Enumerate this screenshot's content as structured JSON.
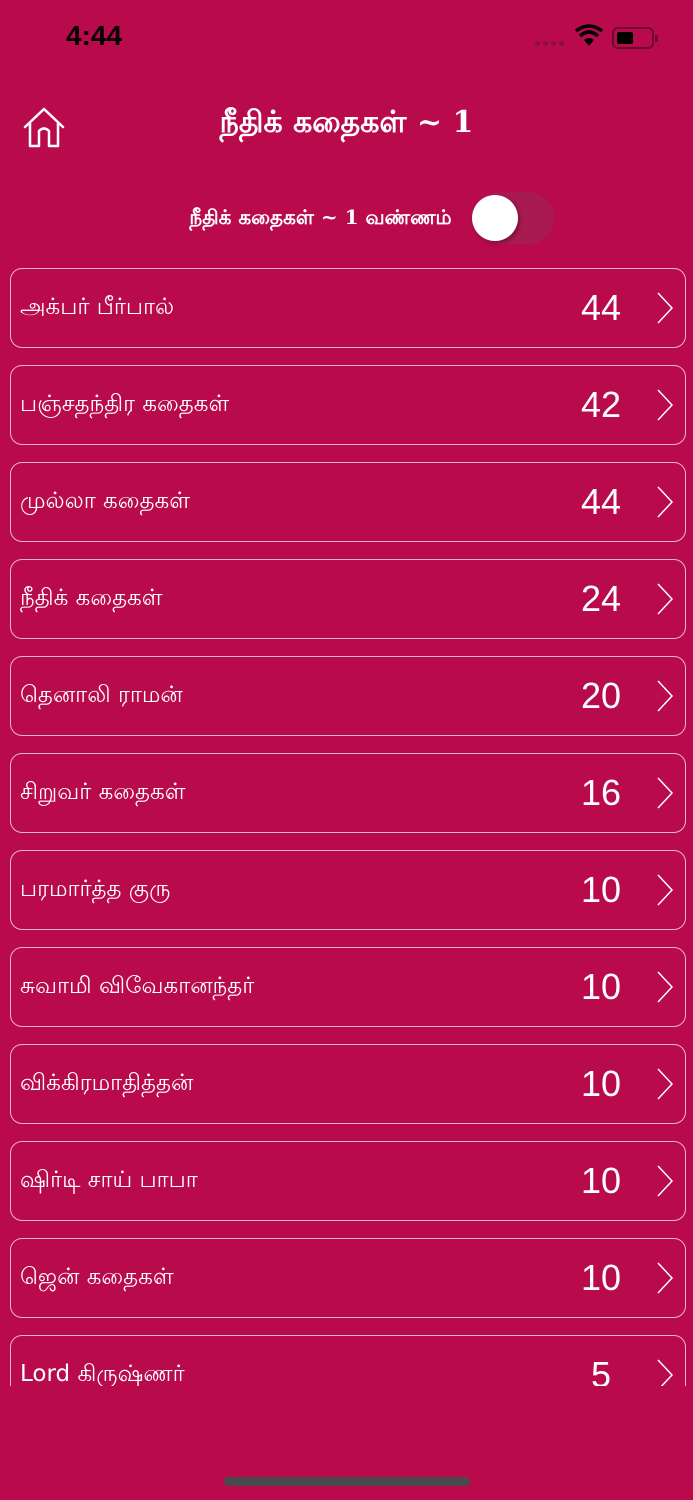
{
  "status_bar": {
    "time": "4:44"
  },
  "header": {
    "title": "நீதிக் கதைகள் ~ 1",
    "home_icon": "home-icon"
  },
  "toggle": {
    "label": "நீதிக் கதைகள் ~ 1 வண்ணம்",
    "on": false
  },
  "colors": {
    "background": "#b90a4b",
    "border": "#e8b8c8"
  },
  "categories": [
    {
      "name": "அக்பர் பீர்பால்",
      "count": "44"
    },
    {
      "name": "பஞ்சதந்திர கதைகள்",
      "count": "42"
    },
    {
      "name": "முல்லா கதைகள்",
      "count": "44"
    },
    {
      "name": "நீதிக் கதைகள்",
      "count": "24"
    },
    {
      "name": "தெனாலி ராமன்",
      "count": "20"
    },
    {
      "name": "சிறுவர் கதைகள்",
      "count": "16"
    },
    {
      "name": "பரமார்த்த குரு",
      "count": "10"
    },
    {
      "name": "சுவாமி விவேகானந்தர்",
      "count": "10"
    },
    {
      "name": "விக்கிரமாதித்தன்",
      "count": "10"
    },
    {
      "name": "ஷிர்டி சாய் பாபா",
      "count": "10"
    },
    {
      "name": "ஜென் கதைகள்",
      "count": "10"
    },
    {
      "name": "Lord கிருஷ்ணர்",
      "count": "5"
    }
  ]
}
